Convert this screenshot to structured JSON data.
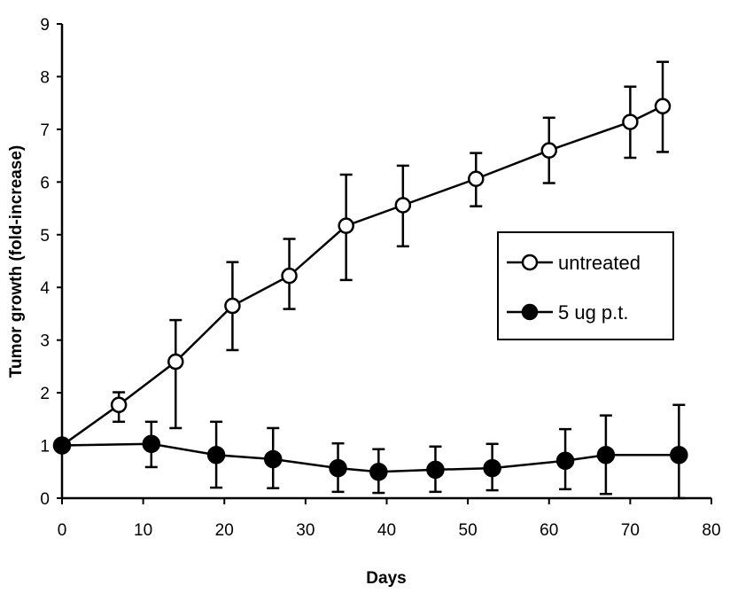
{
  "chart_data": {
    "type": "line",
    "title": "",
    "xlabel": "Days",
    "ylabel": "Tumor growth (fold-increase)",
    "xlim": [
      0,
      80
    ],
    "ylim": [
      0,
      9
    ],
    "xticks": [
      0,
      10,
      20,
      30,
      40,
      50,
      60,
      70,
      80
    ],
    "yticks": [
      0,
      1,
      2,
      3,
      4,
      5,
      6,
      7,
      8,
      9
    ],
    "grid": false,
    "legend_position": "right",
    "series": [
      {
        "name": "untreated",
        "marker": "open-circle",
        "x": [
          0,
          7,
          14,
          21,
          28,
          35,
          42,
          51,
          60,
          70,
          74
        ],
        "y": [
          1.0,
          1.77,
          2.59,
          3.65,
          4.22,
          5.17,
          5.56,
          6.06,
          6.6,
          7.14,
          7.44
        ],
        "err_upper": [
          null,
          2.01,
          3.38,
          4.48,
          4.92,
          6.14,
          6.31,
          6.55,
          7.22,
          7.81,
          8.28
        ],
        "err_lower": [
          null,
          1.45,
          1.33,
          2.81,
          3.59,
          4.14,
          4.78,
          5.54,
          5.98,
          6.46,
          6.57
        ]
      },
      {
        "name": "5 ug p.t.",
        "marker": "filled-circle",
        "x": [
          0,
          11,
          19,
          26,
          34,
          39,
          46,
          53,
          62,
          67,
          76
        ],
        "y": [
          1.0,
          1.03,
          0.82,
          0.74,
          0.57,
          0.5,
          0.54,
          0.57,
          0.71,
          0.82,
          0.82
        ],
        "err_upper": [
          null,
          1.45,
          1.45,
          1.33,
          1.04,
          0.93,
          0.98,
          1.03,
          1.31,
          1.57,
          1.77
        ],
        "err_lower": [
          null,
          0.59,
          0.2,
          0.19,
          0.12,
          0.1,
          0.12,
          0.15,
          0.17,
          0.08,
          0.0
        ]
      }
    ]
  }
}
